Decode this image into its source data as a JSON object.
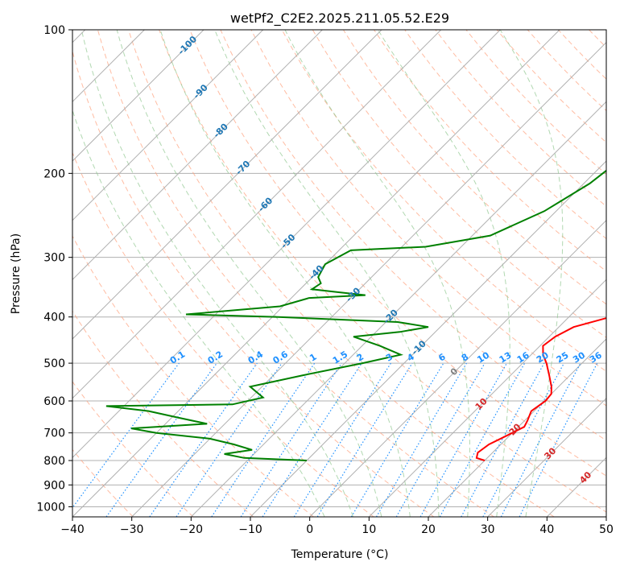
{
  "chart_data": {
    "type": "line",
    "subtype": "skew-t log-p diagram",
    "title": "wetPf2_C2E2.2025.211.05.52.E29",
    "xlabel": "Temperature (°C)",
    "ylabel": "Pressure (hPa)",
    "xlim": [
      -40,
      50
    ],
    "ylim": [
      1050,
      100
    ],
    "y_scale": "log",
    "grid": true,
    "x_ticks": [
      "−40",
      "−30",
      "−20",
      "−10",
      "0",
      "10",
      "20",
      "30",
      "40",
      "50"
    ],
    "y_ticks": [
      "100",
      "200",
      "300",
      "400",
      "500",
      "600",
      "700",
      "800",
      "900",
      "1000"
    ],
    "series": [
      {
        "role": "temperature",
        "color": "#ff0000",
        "points": [
          [
            -3.0,
            100
          ],
          [
            -3.5,
            110
          ],
          [
            -4.5,
            120
          ],
          [
            -4.8,
            130
          ],
          [
            -3.8,
            150
          ],
          [
            -1.5,
            170
          ],
          [
            1.5,
            190
          ],
          [
            3.8,
            210
          ],
          [
            7.0,
            240
          ],
          [
            10.0,
            270
          ],
          [
            12.5,
            300
          ],
          [
            14.0,
            330
          ],
          [
            15.2,
            360
          ],
          [
            18.5,
            380
          ],
          [
            19.5,
            390
          ],
          [
            17.0,
            400
          ],
          [
            12.5,
            420
          ],
          [
            11.0,
            440
          ],
          [
            10.5,
            460
          ],
          [
            12.0,
            480
          ],
          [
            14.0,
            500
          ],
          [
            16.5,
            530
          ],
          [
            18.8,
            560
          ],
          [
            20.0,
            580
          ],
          [
            20.2,
            600
          ],
          [
            19.5,
            630
          ],
          [
            20.5,
            660
          ],
          [
            21.0,
            680
          ],
          [
            19.5,
            710
          ],
          [
            18.0,
            740
          ],
          [
            17.5,
            770
          ],
          [
            18.2,
            790
          ],
          [
            20.0,
            800
          ]
        ]
      },
      {
        "role": "dewpoint",
        "color": "#008000",
        "points": [
          [
            -10.0,
            100
          ],
          [
            -12.5,
            115
          ],
          [
            -13.5,
            130
          ],
          [
            -12.0,
            145
          ],
          [
            -10.0,
            160
          ],
          [
            -7.5,
            175
          ],
          [
            -8.0,
            190
          ],
          [
            -9.0,
            210
          ],
          [
            -12.0,
            240
          ],
          [
            -17.0,
            270
          ],
          [
            -26.0,
            285
          ],
          [
            -38.0,
            290
          ],
          [
            -40.0,
            310
          ],
          [
            -39.0,
            330
          ],
          [
            -37.5,
            340
          ],
          [
            -38.0,
            350
          ],
          [
            -33.0,
            355
          ],
          [
            -28.0,
            360
          ],
          [
            -37.0,
            365
          ],
          [
            -40.5,
            380
          ],
          [
            -55.0,
            395
          ],
          [
            -39.0,
            400
          ],
          [
            -18.0,
            410
          ],
          [
            -12.0,
            420
          ],
          [
            -16.0,
            430
          ],
          [
            -23.0,
            440
          ],
          [
            -17.0,
            460
          ],
          [
            -12.0,
            480
          ],
          [
            -17.0,
            500
          ],
          [
            -25.0,
            530
          ],
          [
            -32.0,
            560
          ],
          [
            -28.0,
            590
          ],
          [
            -32.0,
            610
          ],
          [
            -53.0,
            615
          ],
          [
            -45.0,
            630
          ],
          [
            -39.0,
            650
          ],
          [
            -33.0,
            670
          ],
          [
            -45.0,
            685
          ],
          [
            -40.0,
            700
          ],
          [
            -30.0,
            720
          ],
          [
            -25.0,
            740
          ],
          [
            -21.0,
            760
          ],
          [
            -25.0,
            775
          ],
          [
            -21.0,
            790
          ],
          [
            -10.0,
            800
          ]
        ]
      }
    ],
    "isotherms_spacing": 10,
    "dry_adiabats_theta_K": [
      240,
      250,
      260,
      270,
      280,
      290,
      300,
      310,
      320,
      330,
      340,
      350,
      360,
      370,
      380,
      390,
      400,
      410,
      420,
      430,
      440,
      450,
      460,
      470,
      480,
      490,
      500,
      520,
      540,
      560
    ],
    "moist_adiabats_C": [
      0,
      5,
      10,
      15,
      20,
      25,
      30,
      35
    ],
    "mixing_ratio_lines": [
      0.1,
      0.2,
      0.4,
      0.6,
      1,
      1.5,
      2,
      3,
      4,
      6,
      8,
      10,
      13,
      16,
      20,
      25,
      30,
      36
    ],
    "mixing_ratio_labels": [
      "0.1",
      "0.2",
      "0.4",
      "0.6",
      "1",
      "1.5",
      "2",
      "3",
      "4",
      "6",
      "8",
      "10",
      "13",
      "16",
      "20",
      "25",
      "30",
      "36"
    ],
    "isotherm_labels": [
      {
        "text": "-100",
        "temp": -100,
        "p": 108
      },
      {
        "text": "-90",
        "temp": -90,
        "p": 135
      },
      {
        "text": "-80",
        "temp": -80,
        "p": 163
      },
      {
        "text": "-70",
        "temp": -70,
        "p": 195
      },
      {
        "text": "-60",
        "temp": -60,
        "p": 233
      },
      {
        "text": "-50",
        "temp": -50,
        "p": 278
      },
      {
        "text": "-40",
        "temp": -40,
        "p": 323
      },
      {
        "text": "-30",
        "temp": -30,
        "p": 360
      },
      {
        "text": "-20",
        "temp": -20,
        "p": 400
      },
      {
        "text": "-10",
        "temp": -10,
        "p": 465
      },
      {
        "text": "0",
        "temp": 0,
        "p": 522
      },
      {
        "text": "10",
        "temp": 10,
        "p": 610
      },
      {
        "text": "20",
        "temp": 20,
        "p": 690
      },
      {
        "text": "30",
        "temp": 30,
        "p": 775
      },
      {
        "text": "40",
        "temp": 40,
        "p": 870
      }
    ],
    "colors": {
      "temperature": "#ff0000",
      "dewpoint": "#008000",
      "isotherm_cold_label": "#1f77b4",
      "isotherm_zero_label": "#808080",
      "isotherm_warm_label": "#d62728",
      "mixing_ratio": "#1e90ff",
      "dry_adiabat": "#ffa07a",
      "moist_adiabat": "#90c890",
      "grid": "#b0b0b0"
    }
  }
}
